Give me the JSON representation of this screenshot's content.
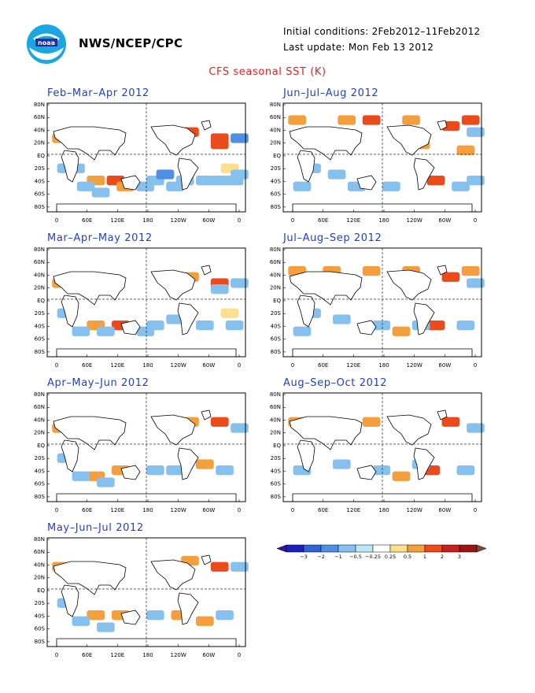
{
  "header": {
    "org": "NWS/NCEP/CPC",
    "initial_conditions": "Initial conditions: 2Feb2012–11Feb2012",
    "last_update": "Last update: Mon Feb 13 2012",
    "title": "CFS seasonal SST (K)"
  },
  "logo": {
    "icon": "noaa-logo",
    "text": "noaa"
  },
  "axes": {
    "lat_labels": [
      "80N",
      "60N",
      "40N",
      "20N",
      "EQ",
      "20S",
      "40S",
      "60S",
      "80S"
    ],
    "lon_labels": [
      "0",
      "60E",
      "120E",
      "180",
      "120W",
      "60W",
      "0"
    ]
  },
  "panels": [
    {
      "title": "Feb–Mar–Apr 2012",
      "cells": [
        {
          "x": 27,
          "y": 4,
          "v": 0.8
        },
        {
          "x": 33,
          "y": 5,
          "v": 0.9
        },
        {
          "x": 33,
          "y": 6,
          "v": 0.8
        },
        {
          "x": 37,
          "y": 5,
          "v": -0.8
        },
        {
          "x": 5,
          "y": 5,
          "v": -0.3
        },
        {
          "x": 10,
          "y": 5,
          "v": -0.3
        },
        {
          "x": 35,
          "y": 10,
          "v": 0.3
        },
        {
          "x": 8,
          "y": 12,
          "v": 0.6
        },
        {
          "x": 12,
          "y": 12,
          "v": 0.8
        },
        {
          "x": 14,
          "y": 13,
          "v": 0.5
        },
        {
          "x": 2,
          "y": 10,
          "v": -0.6
        },
        {
          "x": 4,
          "y": 10,
          "v": -0.5
        },
        {
          "x": 20,
          "y": 12,
          "v": -0.5
        },
        {
          "x": 22,
          "y": 11,
          "v": -0.8
        },
        {
          "x": 26,
          "y": 12,
          "v": -0.5
        },
        {
          "x": 30,
          "y": 12,
          "v": -0.4
        },
        {
          "x": 36,
          "y": 12,
          "v": -0.6
        },
        {
          "x": 6,
          "y": 13,
          "v": -0.4
        },
        {
          "x": 9,
          "y": 14,
          "v": -0.7
        },
        {
          "x": 18,
          "y": 13,
          "v": -0.5
        },
        {
          "x": 24,
          "y": 13,
          "v": -0.6
        },
        {
          "x": 33,
          "y": 12,
          "v": -0.5
        },
        {
          "x": 37,
          "y": 11,
          "v": -0.6
        },
        {
          "x": 1,
          "y": 5,
          "v": 0.6
        }
      ]
    },
    {
      "title": "Jun–Jul–Aug 2012",
      "cells": [
        {
          "x": 16,
          "y": 2,
          "v": 0.8
        },
        {
          "x": 24,
          "y": 2,
          "v": 0.6
        },
        {
          "x": 32,
          "y": 3,
          "v": 0.9
        },
        {
          "x": 36,
          "y": 2,
          "v": 0.8
        },
        {
          "x": 11,
          "y": 2,
          "v": 0.5
        },
        {
          "x": 7,
          "y": 4,
          "v": 0.7
        },
        {
          "x": 37,
          "y": 4,
          "v": -0.5
        },
        {
          "x": 26,
          "y": 6,
          "v": 0.4
        },
        {
          "x": 35,
          "y": 7,
          "v": 0.4
        },
        {
          "x": 29,
          "y": 12,
          "v": 0.9
        },
        {
          "x": 9,
          "y": 11,
          "v": -0.4
        },
        {
          "x": 4,
          "y": 10,
          "v": -0.5
        },
        {
          "x": 34,
          "y": 13,
          "v": -0.5
        },
        {
          "x": 20,
          "y": 13,
          "v": -0.4
        },
        {
          "x": 13,
          "y": 13,
          "v": -0.5
        },
        {
          "x": 2,
          "y": 13,
          "v": -0.6
        },
        {
          "x": 37,
          "y": 12,
          "v": -0.5
        },
        {
          "x": 1,
          "y": 2,
          "v": 0.7
        }
      ]
    },
    {
      "title": "Mar–Apr–May 2012",
      "cells": [
        {
          "x": 27,
          "y": 4,
          "v": 0.7
        },
        {
          "x": 33,
          "y": 5,
          "v": 0.8
        },
        {
          "x": 37,
          "y": 5,
          "v": -0.7
        },
        {
          "x": 33,
          "y": 6,
          "v": -0.4
        },
        {
          "x": 8,
          "y": 12,
          "v": 0.6
        },
        {
          "x": 13,
          "y": 12,
          "v": 0.8
        },
        {
          "x": 2,
          "y": 10,
          "v": -0.5
        },
        {
          "x": 20,
          "y": 12,
          "v": -0.5
        },
        {
          "x": 24,
          "y": 11,
          "v": -0.6
        },
        {
          "x": 30,
          "y": 12,
          "v": -0.4
        },
        {
          "x": 36,
          "y": 12,
          "v": -0.6
        },
        {
          "x": 5,
          "y": 13,
          "v": -0.5
        },
        {
          "x": 10,
          "y": 13,
          "v": -0.7
        },
        {
          "x": 18,
          "y": 13,
          "v": -0.5
        },
        {
          "x": 35,
          "y": 10,
          "v": 0.3
        },
        {
          "x": 1,
          "y": 5,
          "v": 0.5
        }
      ]
    },
    {
      "title": "Jul–Aug–Sep 2012",
      "cells": [
        {
          "x": 16,
          "y": 3,
          "v": 0.7
        },
        {
          "x": 24,
          "y": 3,
          "v": 0.5
        },
        {
          "x": 32,
          "y": 4,
          "v": 0.8
        },
        {
          "x": 36,
          "y": 3,
          "v": 0.6
        },
        {
          "x": 8,
          "y": 3,
          "v": 0.5
        },
        {
          "x": 37,
          "y": 5,
          "v": -0.6
        },
        {
          "x": 29,
          "y": 12,
          "v": 0.8
        },
        {
          "x": 4,
          "y": 10,
          "v": -0.5
        },
        {
          "x": 10,
          "y": 11,
          "v": -0.4
        },
        {
          "x": 18,
          "y": 12,
          "v": -0.4
        },
        {
          "x": 26,
          "y": 12,
          "v": -0.5
        },
        {
          "x": 35,
          "y": 12,
          "v": -0.5
        },
        {
          "x": 22,
          "y": 13,
          "v": 0.6
        },
        {
          "x": 2,
          "y": 13,
          "v": -0.5
        },
        {
          "x": 1,
          "y": 3,
          "v": 0.6
        }
      ]
    },
    {
      "title": "Apr–May–Jun 2012",
      "cells": [
        {
          "x": 27,
          "y": 4,
          "v": 0.7
        },
        {
          "x": 33,
          "y": 4,
          "v": 0.8
        },
        {
          "x": 37,
          "y": 5,
          "v": -0.6
        },
        {
          "x": 8,
          "y": 13,
          "v": 0.6
        },
        {
          "x": 13,
          "y": 12,
          "v": 0.7
        },
        {
          "x": 20,
          "y": 12,
          "v": -0.4
        },
        {
          "x": 24,
          "y": 12,
          "v": -0.5
        },
        {
          "x": 2,
          "y": 10,
          "v": -0.5
        },
        {
          "x": 34,
          "y": 12,
          "v": -0.6
        },
        {
          "x": 30,
          "y": 11,
          "v": 0.5
        },
        {
          "x": 5,
          "y": 13,
          "v": -0.5
        },
        {
          "x": 10,
          "y": 14,
          "v": -0.6
        },
        {
          "x": 1,
          "y": 5,
          "v": 0.5
        }
      ]
    },
    {
      "title": "Aug–Sep–Oct 2012",
      "cells": [
        {
          "x": 16,
          "y": 4,
          "v": 0.7
        },
        {
          "x": 32,
          "y": 4,
          "v": 0.8
        },
        {
          "x": 37,
          "y": 5,
          "v": -0.6
        },
        {
          "x": 28,
          "y": 12,
          "v": 0.8
        },
        {
          "x": 10,
          "y": 11,
          "v": -0.4
        },
        {
          "x": 18,
          "y": 12,
          "v": -0.4
        },
        {
          "x": 26,
          "y": 11,
          "v": -0.5
        },
        {
          "x": 35,
          "y": 12,
          "v": -0.5
        },
        {
          "x": 22,
          "y": 13,
          "v": 0.6
        },
        {
          "x": 2,
          "y": 12,
          "v": -0.5
        },
        {
          "x": 1,
          "y": 4,
          "v": 0.5
        }
      ]
    },
    {
      "title": "May–Jun–Jul 2012",
      "cells": [
        {
          "x": 27,
          "y": 3,
          "v": 0.7
        },
        {
          "x": 33,
          "y": 4,
          "v": 0.8
        },
        {
          "x": 37,
          "y": 4,
          "v": -0.6
        },
        {
          "x": 8,
          "y": 12,
          "v": 0.6
        },
        {
          "x": 13,
          "y": 12,
          "v": 0.7
        },
        {
          "x": 20,
          "y": 12,
          "v": -0.4
        },
        {
          "x": 25,
          "y": 12,
          "v": 0.5
        },
        {
          "x": 2,
          "y": 10,
          "v": -0.5
        },
        {
          "x": 34,
          "y": 12,
          "v": -0.5
        },
        {
          "x": 30,
          "y": 13,
          "v": 0.6
        },
        {
          "x": 5,
          "y": 13,
          "v": -0.5
        },
        {
          "x": 10,
          "y": 14,
          "v": -0.6
        },
        {
          "x": 1,
          "y": 4,
          "v": 0.5
        }
      ]
    }
  ],
  "legend": {
    "labels": [
      "−3",
      "−2",
      "−1",
      "−0.5",
      "−0.25",
      "0.25",
      "0.5",
      "1",
      "2",
      "3"
    ],
    "colors": [
      "#1a1fbe",
      "#3361d6",
      "#4f8fe3",
      "#86c0ef",
      "#bfe6f5",
      "#ffffff",
      "#fde08f",
      "#f59e3d",
      "#eb4a1c",
      "#c81e1e",
      "#9b1414"
    ],
    "end_low": "#3a1298",
    "end_high": "#7a4a3a"
  },
  "colors": {
    "title": "#e0231d",
    "panel_title": "#1f3fd0",
    "land": "#ffffff",
    "coast": "#000000"
  }
}
